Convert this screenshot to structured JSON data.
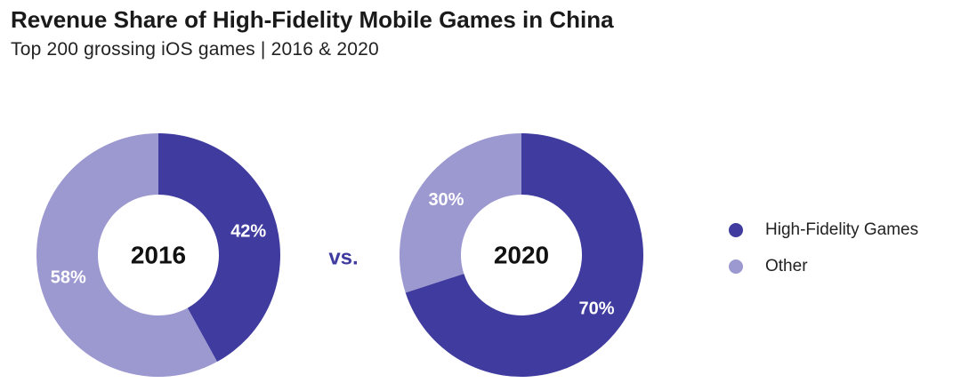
{
  "title": "Revenue Share of High-Fidelity Mobile Games in China",
  "subtitle": "Top 200 grossing iOS games | 2016 & 2020",
  "chart_data": {
    "type": "pie",
    "variant": "donut",
    "title": "Revenue Share of High-Fidelity Mobile Games in China",
    "subtitle": "Top 200 grossing iOS games | 2016 & 2020",
    "categories": [
      "High-Fidelity Games",
      "Other"
    ],
    "colors": {
      "High-Fidelity Games": "#3F3B9F",
      "Other": "#9C98D0"
    },
    "vs_color": "#3F3B9F",
    "vs_label": "vs.",
    "legend_position": "right",
    "charts": [
      {
        "center_label": "2016",
        "slices": [
          {
            "name": "High-Fidelity Games",
            "value": 42,
            "label": "42%"
          },
          {
            "name": "Other",
            "value": 58,
            "label": "58%"
          }
        ]
      },
      {
        "center_label": "2020",
        "slices": [
          {
            "name": "High-Fidelity Games",
            "value": 70,
            "label": "70%"
          },
          {
            "name": "Other",
            "value": 30,
            "label": "30%"
          }
        ]
      }
    ]
  }
}
